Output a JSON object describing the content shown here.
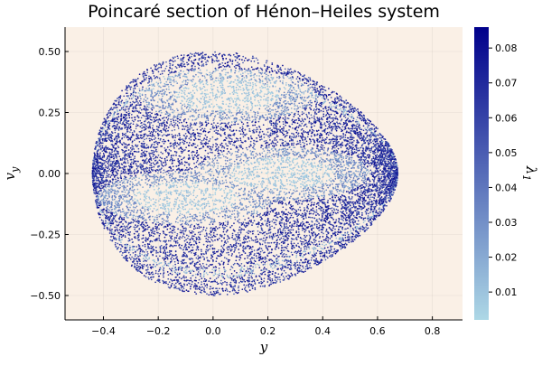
{
  "chart_data": {
    "type": "scatter",
    "title": "Poincaré section of Hénon–Heiles system",
    "xlabel": "y",
    "ylabel": "v",
    "ylabel_subscript": "y",
    "colorbar_label": "λ",
    "colorbar_label_subscript": "1",
    "xlim": [
      -0.54,
      0.91
    ],
    "ylim": [
      -0.6,
      0.6
    ],
    "x_ticks": [
      -0.4,
      -0.2,
      0.0,
      0.2,
      0.4,
      0.6,
      0.8
    ],
    "x_tick_labels": [
      "−0.4",
      "−0.2",
      "0.0",
      "0.2",
      "0.4",
      "0.6",
      "0.8"
    ],
    "y_ticks": [
      -0.5,
      -0.25,
      0.0,
      0.25,
      0.5
    ],
    "y_tick_labels": [
      "−0.50",
      "−0.25",
      "0.00",
      "0.25",
      "0.50"
    ],
    "colorbar_range": [
      0.002,
      0.086
    ],
    "colorbar_ticks": [
      0.01,
      0.02,
      0.03,
      0.04,
      0.05,
      0.06,
      0.07,
      0.08
    ],
    "colorbar_tick_labels": [
      "0.01",
      "0.02",
      "0.03",
      "0.04",
      "0.05",
      "0.06",
      "0.07",
      "0.08"
    ],
    "colormap": [
      "#add8e6",
      "#00008b"
    ],
    "background_color": "#faf0e6",
    "grid": true,
    "legend": "none",
    "regions": [
      {
        "description": "outer chaotic sea",
        "x_range": [
          -0.5,
          0.84
        ],
        "vy_range": [
          -0.55,
          0.55
        ],
        "lambda_typical": 0.07
      },
      {
        "description": "inner regular islands",
        "centers": [
          [
            0.25,
            0.0
          ],
          [
            0.05,
            0.32
          ],
          [
            -0.1,
            -0.1
          ]
        ],
        "lambda_typical": 0.005
      }
    ]
  }
}
